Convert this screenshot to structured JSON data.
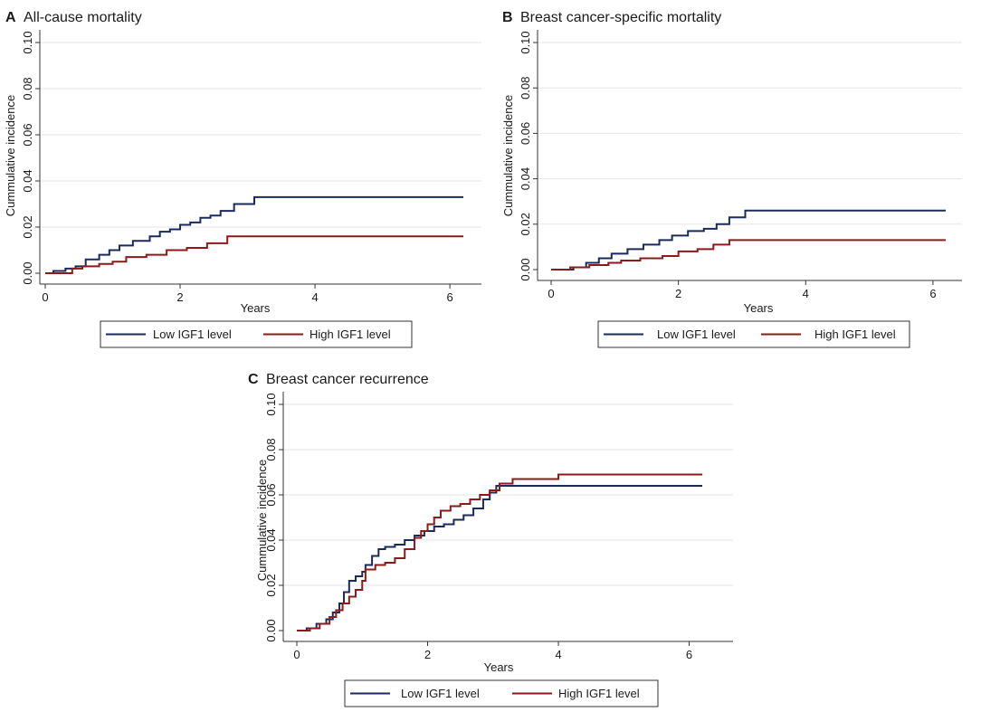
{
  "colors": {
    "low": "#1b2a5c",
    "high": "#8b1a1a",
    "grid": "#e6e6e6",
    "axis": "#333333"
  },
  "legend_labels": {
    "low": "Low IGF1 level",
    "high": "High IGF1 level"
  },
  "chart_data": [
    {
      "id": "A",
      "type": "line",
      "panel_letter": "A",
      "title": "All-cause mortality",
      "xlabel": "Years",
      "ylabel": "Cummulative incidence",
      "xlim": [
        0,
        6.2
      ],
      "ylim": [
        0,
        0.1
      ],
      "xticks": [
        0,
        2,
        4,
        6
      ],
      "yticks": [
        0.0,
        0.02,
        0.04,
        0.06,
        0.08,
        0.1
      ],
      "ytick_labels": [
        "0.00",
        "0.02",
        "0.04",
        "0.06",
        "0.08",
        "0.10"
      ],
      "grid": true,
      "legend_position": "bottom",
      "series": [
        {
          "name": "Low IGF1 level",
          "key": "low",
          "x": [
            0,
            0.12,
            0.3,
            0.45,
            0.6,
            0.8,
            0.95,
            1.1,
            1.3,
            1.55,
            1.7,
            1.85,
            2.0,
            2.15,
            2.3,
            2.45,
            2.6,
            2.8,
            3.1,
            6.2
          ],
          "y": [
            0.0,
            0.001,
            0.002,
            0.003,
            0.006,
            0.008,
            0.01,
            0.012,
            0.014,
            0.016,
            0.018,
            0.019,
            0.021,
            0.022,
            0.024,
            0.025,
            0.027,
            0.03,
            0.033,
            0.033
          ]
        },
        {
          "name": "High IGF1 level",
          "key": "high",
          "x": [
            0,
            0.4,
            0.55,
            0.8,
            1.0,
            1.2,
            1.5,
            1.8,
            2.1,
            2.4,
            2.7,
            6.2
          ],
          "y": [
            0.0,
            0.002,
            0.003,
            0.004,
            0.005,
            0.007,
            0.008,
            0.01,
            0.011,
            0.013,
            0.016,
            0.016
          ]
        }
      ]
    },
    {
      "id": "B",
      "type": "line",
      "panel_letter": "B",
      "title": "Breast cancer-specific mortality",
      "xlabel": "Years",
      "ylabel": "Cummulative incidence",
      "xlim": [
        0,
        6.2
      ],
      "ylim": [
        0,
        0.1
      ],
      "xticks": [
        0,
        2,
        4,
        6
      ],
      "yticks": [
        0.0,
        0.02,
        0.04,
        0.06,
        0.08,
        0.1
      ],
      "ytick_labels": [
        "0.00",
        "0.02",
        "0.04",
        "0.06",
        "0.08",
        "0.10"
      ],
      "grid": true,
      "legend_position": "bottom",
      "series": [
        {
          "name": "Low IGF1 level",
          "key": "low",
          "x": [
            0,
            0.35,
            0.55,
            0.75,
            0.95,
            1.2,
            1.45,
            1.7,
            1.9,
            2.15,
            2.4,
            2.6,
            2.8,
            3.05,
            6.2
          ],
          "y": [
            0.0,
            0.001,
            0.003,
            0.005,
            0.007,
            0.009,
            0.011,
            0.013,
            0.015,
            0.017,
            0.018,
            0.02,
            0.023,
            0.026,
            0.026
          ]
        },
        {
          "name": "High IGF1 level",
          "key": "high",
          "x": [
            0,
            0.3,
            0.6,
            0.9,
            1.1,
            1.4,
            1.75,
            2.0,
            2.3,
            2.55,
            2.8,
            6.2
          ],
          "y": [
            0.0,
            0.001,
            0.002,
            0.003,
            0.004,
            0.005,
            0.006,
            0.008,
            0.009,
            0.011,
            0.013,
            0.013
          ]
        }
      ]
    },
    {
      "id": "C",
      "type": "line",
      "panel_letter": "C",
      "title": "Breast cancer recurrence",
      "xlabel": "Years",
      "ylabel": "Cummulative incidence",
      "xlim": [
        0,
        6.2
      ],
      "ylim": [
        0,
        0.1
      ],
      "xticks": [
        0,
        2,
        4,
        6
      ],
      "yticks": [
        0.0,
        0.02,
        0.04,
        0.06,
        0.08,
        0.1
      ],
      "ytick_labels": [
        "0.00",
        "0.02",
        "0.04",
        "0.06",
        "0.08",
        "0.10"
      ],
      "grid": true,
      "legend_position": "bottom",
      "series": [
        {
          "name": "Low IGF1 level",
          "key": "low",
          "x": [
            0,
            0.15,
            0.3,
            0.45,
            0.55,
            0.65,
            0.72,
            0.8,
            0.9,
            1.0,
            1.05,
            1.15,
            1.25,
            1.35,
            1.5,
            1.65,
            1.8,
            1.95,
            2.1,
            2.25,
            2.4,
            2.55,
            2.7,
            2.85,
            2.95,
            3.05,
            3.3,
            6.2
          ],
          "y": [
            0.0,
            0.001,
            0.003,
            0.005,
            0.008,
            0.012,
            0.017,
            0.022,
            0.024,
            0.026,
            0.029,
            0.033,
            0.036,
            0.037,
            0.038,
            0.04,
            0.042,
            0.044,
            0.046,
            0.047,
            0.049,
            0.051,
            0.054,
            0.058,
            0.061,
            0.064,
            0.064,
            0.064
          ]
        },
        {
          "name": "High IGF1 level",
          "key": "high",
          "x": [
            0,
            0.2,
            0.35,
            0.5,
            0.6,
            0.7,
            0.8,
            0.9,
            1.0,
            1.05,
            1.2,
            1.35,
            1.5,
            1.65,
            1.8,
            1.9,
            2.0,
            2.1,
            2.2,
            2.35,
            2.5,
            2.65,
            2.8,
            2.95,
            3.1,
            3.3,
            4.0,
            6.2
          ],
          "y": [
            0.0,
            0.001,
            0.003,
            0.006,
            0.009,
            0.012,
            0.015,
            0.018,
            0.022,
            0.027,
            0.029,
            0.03,
            0.032,
            0.036,
            0.041,
            0.044,
            0.047,
            0.05,
            0.053,
            0.055,
            0.056,
            0.058,
            0.06,
            0.062,
            0.065,
            0.067,
            0.069,
            0.069
          ]
        }
      ]
    }
  ]
}
